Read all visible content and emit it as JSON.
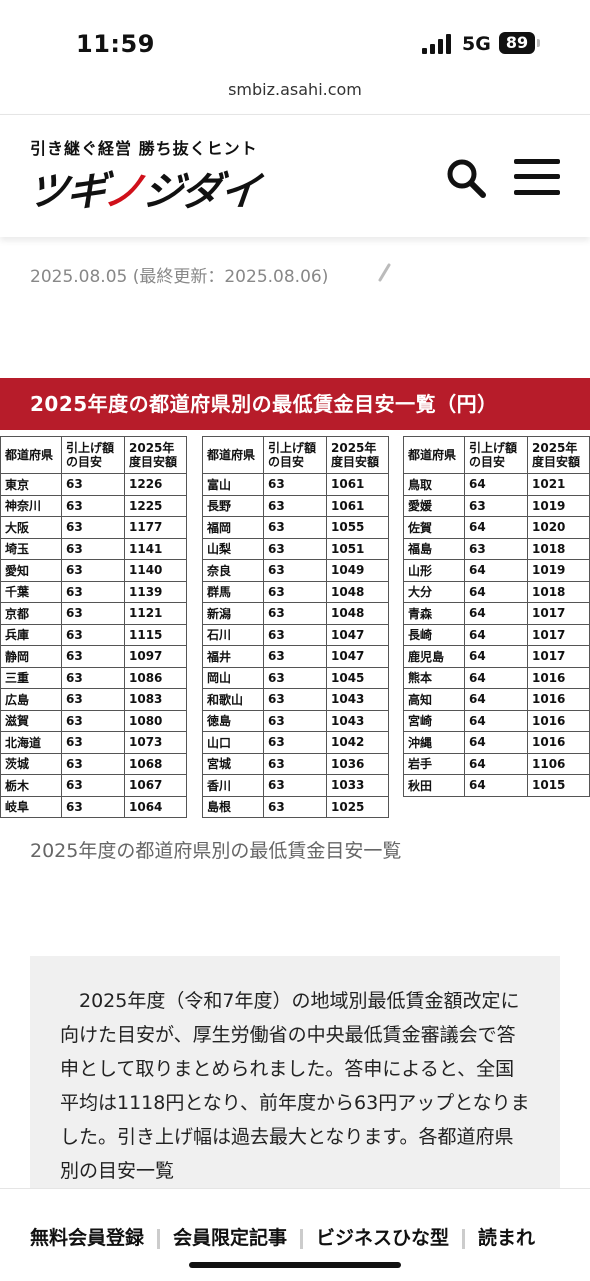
{
  "status_bar": {
    "time": "11:59",
    "network": "5G",
    "battery": "89"
  },
  "browser": {
    "url": "smbiz.asahi.com"
  },
  "site": {
    "tagline": "引き継ぐ経営 勝ち抜くヒント",
    "logo_black": "ツギ",
    "logo_red": "ノ",
    "logo_black2": "ジダイ",
    "search_icon": "search-icon",
    "menu_icon": "hamburger-menu-icon"
  },
  "article": {
    "date_line": "2025.08.05 (最終更新：2025.08.06)",
    "caption": "2025年度の都道府県別の最低賃金目安一覧",
    "body": "2025年度（令和7年度）の地域別最低賃金額改定に向けた目安が、厚生労働省の中央最低賃金審議会で答申として取りまとめられました。答申によると、全国平均は1118円となり、前年度から63円アップとなりました。引き上げ幅は過去最大となります。各都道府県別の目安一覧"
  },
  "table": {
    "title": "2025年度の都道府県別の最低賃金目安一覧（円）",
    "headers": [
      "都道府県",
      "引上げ額の目安",
      "2025年度目安額"
    ],
    "header_lines": [
      [
        "都道府県"
      ],
      [
        "引上げ額",
        "の目安"
      ],
      [
        "2025年",
        "度目安額"
      ]
    ],
    "columns": [
      [
        [
          "東京",
          "63",
          "1226"
        ],
        [
          "神奈川",
          "63",
          "1225"
        ],
        [
          "大阪",
          "63",
          "1177"
        ],
        [
          "埼玉",
          "63",
          "1141"
        ],
        [
          "愛知",
          "63",
          "1140"
        ],
        [
          "千葉",
          "63",
          "1139"
        ],
        [
          "京都",
          "63",
          "1121"
        ],
        [
          "兵庫",
          "63",
          "1115"
        ],
        [
          "静岡",
          "63",
          "1097"
        ],
        [
          "三重",
          "63",
          "1086"
        ],
        [
          "広島",
          "63",
          "1083"
        ],
        [
          "滋賀",
          "63",
          "1080"
        ],
        [
          "北海道",
          "63",
          "1073"
        ],
        [
          "茨城",
          "63",
          "1068"
        ],
        [
          "栃木",
          "63",
          "1067"
        ],
        [
          "岐阜",
          "63",
          "1064"
        ]
      ],
      [
        [
          "富山",
          "63",
          "1061"
        ],
        [
          "長野",
          "63",
          "1061"
        ],
        [
          "福岡",
          "63",
          "1055"
        ],
        [
          "山梨",
          "63",
          "1051"
        ],
        [
          "奈良",
          "63",
          "1049"
        ],
        [
          "群馬",
          "63",
          "1048"
        ],
        [
          "新潟",
          "63",
          "1048"
        ],
        [
          "石川",
          "63",
          "1047"
        ],
        [
          "福井",
          "63",
          "1047"
        ],
        [
          "岡山",
          "63",
          "1045"
        ],
        [
          "和歌山",
          "63",
          "1043"
        ],
        [
          "徳島",
          "63",
          "1043"
        ],
        [
          "山口",
          "63",
          "1042"
        ],
        [
          "宮城",
          "63",
          "1036"
        ],
        [
          "香川",
          "63",
          "1033"
        ],
        [
          "島根",
          "63",
          "1025"
        ]
      ],
      [
        [
          "鳥取",
          "64",
          "1021"
        ],
        [
          "愛媛",
          "63",
          "1019"
        ],
        [
          "佐賀",
          "64",
          "1020"
        ],
        [
          "福島",
          "63",
          "1018"
        ],
        [
          "山形",
          "64",
          "1019"
        ],
        [
          "大分",
          "64",
          "1018"
        ],
        [
          "青森",
          "64",
          "1017"
        ],
        [
          "長崎",
          "64",
          "1017"
        ],
        [
          "鹿児島",
          "64",
          "1017"
        ],
        [
          "熊本",
          "64",
          "1016"
        ],
        [
          "高知",
          "64",
          "1016"
        ],
        [
          "宮崎",
          "64",
          "1016"
        ],
        [
          "沖縄",
          "64",
          "1016"
        ],
        [
          "岩手",
          "64",
          "1106"
        ],
        [
          "秋田",
          "64",
          "1015"
        ]
      ]
    ]
  },
  "bottom_nav": [
    "無料会員登録",
    "会員限定記事",
    "ビジネスひな型",
    "読まれ"
  ],
  "colors": {
    "accent_red": "#b71c2a",
    "logo_red": "#d0101a"
  }
}
